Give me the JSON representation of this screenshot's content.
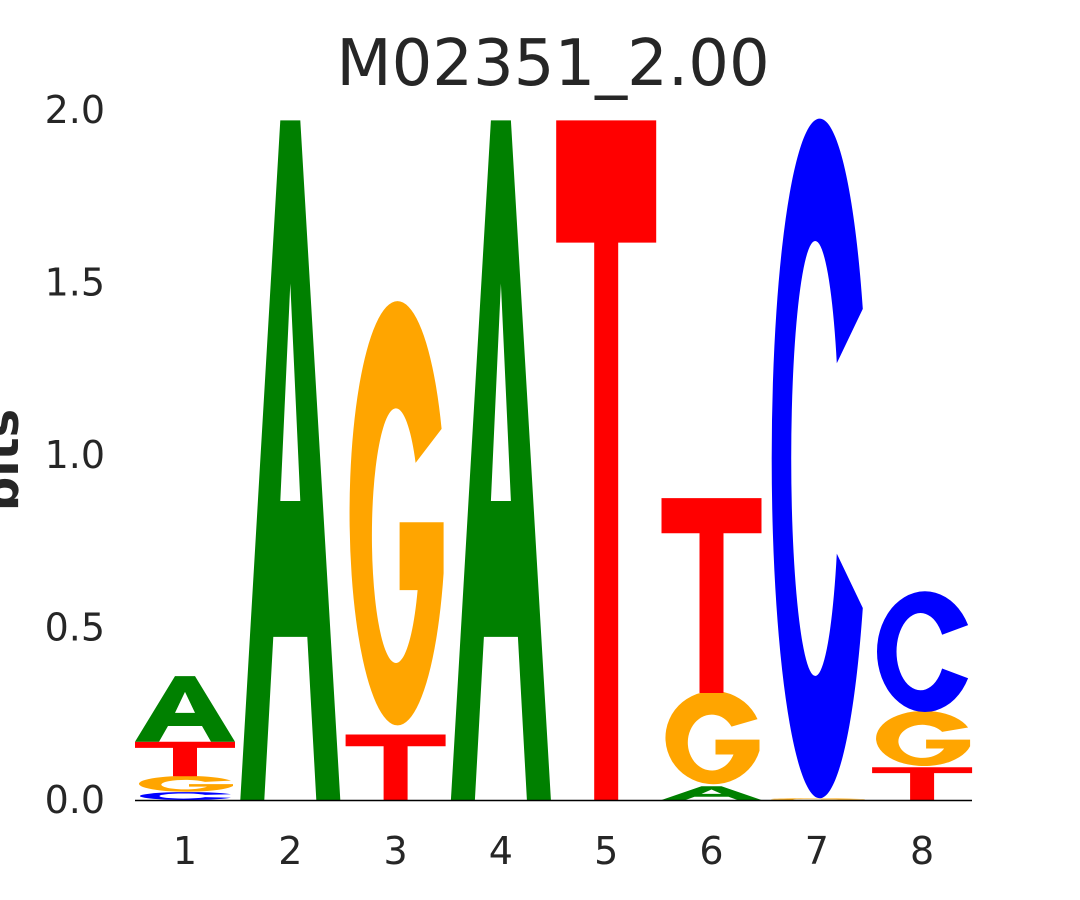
{
  "chart_data": {
    "type": "sequence-logo",
    "title": "M02351_2.00",
    "ylabel": "bits",
    "xlabel": "",
    "ylim": [
      0,
      2.0
    ],
    "yticks": [
      "0.0",
      "0.5",
      "1.0",
      "1.5",
      "2.0"
    ],
    "positions": [
      "1",
      "2",
      "3",
      "4",
      "5",
      "6",
      "7",
      "8"
    ],
    "colors": {
      "A": "#008000",
      "C": "#0000ff",
      "G": "#ffa500",
      "T": "#ff0000"
    },
    "stacks": [
      [
        {
          "base": "C",
          "bits": 0.023
        },
        {
          "base": "G",
          "bits": 0.046
        },
        {
          "base": "T",
          "bits": 0.1
        },
        {
          "base": "A",
          "bits": 0.19
        }
      ],
      [
        {
          "base": "A",
          "bits": 1.97
        }
      ],
      [
        {
          "base": "T",
          "bits": 0.19
        },
        {
          "base": "G",
          "bits": 1.23
        }
      ],
      [
        {
          "base": "A",
          "bits": 1.97
        }
      ],
      [
        {
          "base": "T",
          "bits": 1.97
        }
      ],
      [
        {
          "base": "A",
          "bits": 0.04
        },
        {
          "base": "G",
          "bits": 0.27
        },
        {
          "base": "T",
          "bits": 0.565
        }
      ],
      [
        {
          "base": "G",
          "bits": 0.005
        },
        {
          "base": "C",
          "bits": 1.97
        }
      ],
      [
        {
          "base": "T",
          "bits": 0.095
        },
        {
          "base": "G",
          "bits": 0.16
        },
        {
          "base": "C",
          "bits": 0.35
        }
      ]
    ],
    "grid": false
  }
}
